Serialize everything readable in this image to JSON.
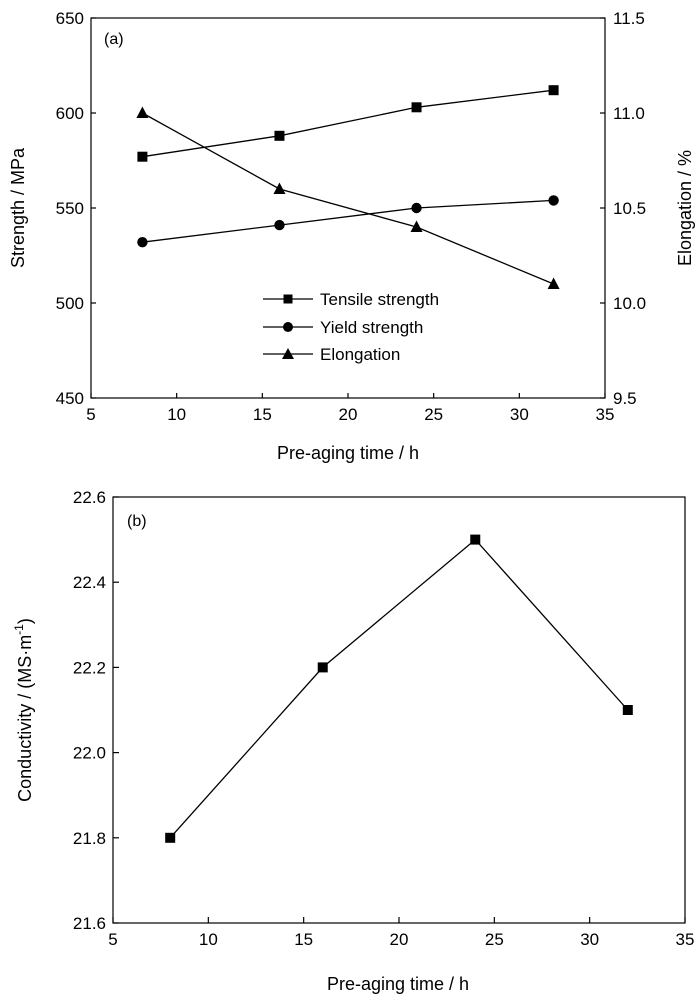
{
  "chart_data": [
    {
      "type": "line",
      "panel_label": "(a)",
      "xlabel": "Pre-aging time / h",
      "ylabel": "Strength / MPa",
      "y2label": "Elongation / %",
      "xlim": [
        5,
        35
      ],
      "ylim": [
        450,
        650
      ],
      "y2lim": [
        9.5,
        11.5
      ],
      "x_ticks": [
        "5",
        "10",
        "15",
        "20",
        "25",
        "30",
        "35"
      ],
      "y_ticks": [
        "450",
        "500",
        "550",
        "600",
        "650"
      ],
      "y2_ticks": [
        "9.5",
        "10.0",
        "10.5",
        "11.0",
        "11.5"
      ],
      "grid": false,
      "legend_position": "bottom-center",
      "x": [
        8,
        16,
        24,
        32
      ],
      "series": [
        {
          "name": "Tensile strength",
          "axis": "left",
          "marker": "square",
          "values": [
            577,
            588,
            603,
            612
          ]
        },
        {
          "name": "Yield strength",
          "axis": "left",
          "marker": "circle",
          "values": [
            532,
            541,
            550,
            554
          ]
        },
        {
          "name": "Elongation",
          "axis": "right",
          "marker": "triangle",
          "values": [
            11.0,
            10.6,
            10.4,
            10.1
          ]
        }
      ]
    },
    {
      "type": "line",
      "panel_label": "(b)",
      "xlabel": "Pre-aging time / h",
      "ylabel_main": "Conductivity / (MS·m",
      "ylabel_sup": "-1",
      "ylabel_close": ")",
      "xlim": [
        5,
        35
      ],
      "ylim": [
        21.6,
        22.6
      ],
      "x_ticks": [
        "5",
        "10",
        "15",
        "20",
        "25",
        "30",
        "35"
      ],
      "y_ticks": [
        "21.6",
        "21.8",
        "22.0",
        "22.2",
        "22.4",
        "22.6"
      ],
      "grid": false,
      "x": [
        8,
        16,
        24,
        32
      ],
      "series": [
        {
          "marker": "square",
          "values": [
            21.8,
            22.2,
            22.5,
            22.1
          ]
        }
      ]
    }
  ]
}
